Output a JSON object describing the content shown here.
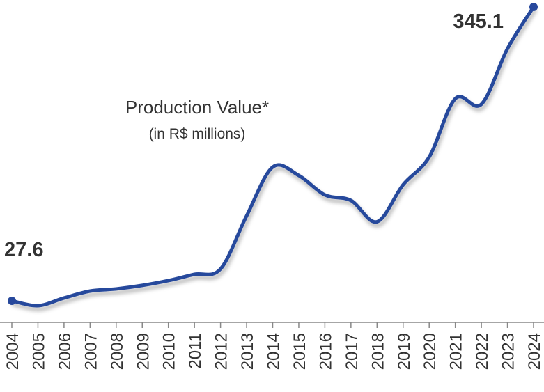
{
  "chart_data": {
    "type": "line",
    "title": "Production Value*",
    "subtitle": "(in R$ millions)",
    "categories": [
      "2004",
      "2005",
      "2006",
      "2007",
      "2008",
      "2009",
      "2010",
      "2011",
      "2012",
      "2013",
      "2014",
      "2015",
      "2016",
      "2017",
      "2018",
      "2019",
      "2020",
      "2021",
      "2022",
      "2023",
      "2024"
    ],
    "values": [
      27.6,
      22.3,
      30.6,
      38.1,
      40.4,
      44.2,
      49.4,
      56.2,
      62,
      119.4,
      172,
      163,
      142,
      136,
      113,
      153,
      183,
      246,
      240,
      300,
      345.1
    ],
    "color": "#27489c"
  }
}
